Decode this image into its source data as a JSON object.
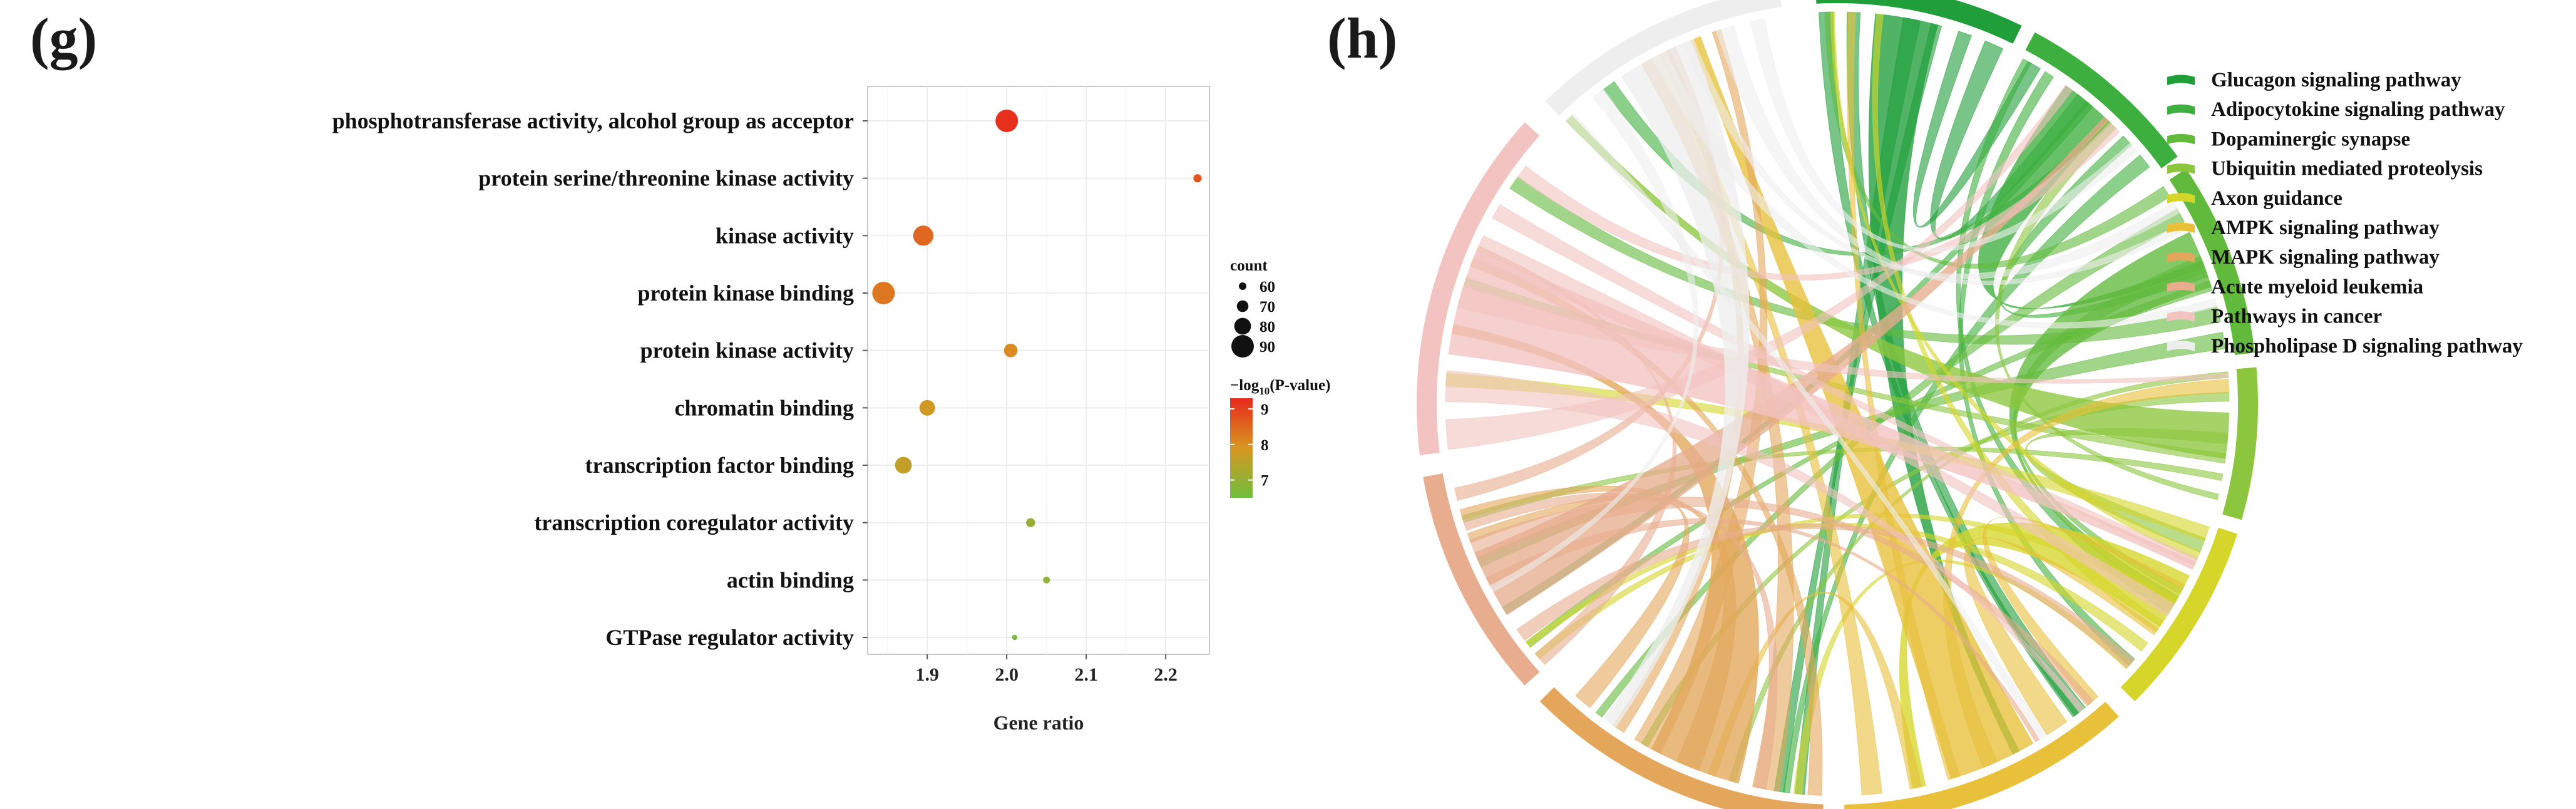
{
  "panels": {
    "left_label": "(g)",
    "right_label": "(h)"
  },
  "chart_data": [
    {
      "type": "scatter",
      "title": "",
      "xlabel": "Gene ratio",
      "ylabel": "",
      "xlim": [
        1.825,
        2.255
      ],
      "xticks": [
        "1.9",
        "2.0",
        "2.1",
        "2.2"
      ],
      "xtick_values": [
        1.9,
        2.0,
        2.1,
        2.2
      ],
      "grid": true,
      "categories": [
        "phosphotransferase activity, alcohol group as acceptor",
        "protein serine/threonine kinase activity",
        "kinase activity",
        "protein kinase binding",
        "protein kinase activity",
        "chromatin binding",
        "transcription factor binding",
        "transcription coregulator activity",
        "actin binding",
        "GTPase regulator activity"
      ],
      "gene_ratio": [
        2.0,
        2.24,
        1.895,
        1.845,
        2.005,
        1.9,
        1.87,
        2.03,
        2.05,
        2.01
      ],
      "count": [
        90,
        62,
        86,
        90,
        74,
        78,
        80,
        64,
        58,
        52
      ],
      "neg_log10_p": [
        9.2,
        8.7,
        8.5,
        8.3,
        8.05,
        7.8,
        7.6,
        7.1,
        6.9,
        6.6
      ],
      "size_legend": {
        "title": "count",
        "values": [
          "60",
          "70",
          "80",
          "90"
        ]
      },
      "color_legend": {
        "title_prefix": "−log",
        "title_sub": "10",
        "title_suffix": "(P-value)",
        "ticks": [
          "9",
          "8",
          "7"
        ],
        "tick_values": [
          9,
          8,
          7
        ],
        "range": [
          6.5,
          9.3
        ],
        "color_low": "#6fbe3f",
        "color_high": "#e8281c"
      }
    },
    {
      "type": "chord",
      "title": "",
      "legend": [
        "Glucagon signaling pathway",
        "Adipocytokine signaling pathway",
        "Dopaminergic synapse",
        "Ubiquitin mediated proteolysis",
        "Axon guidance",
        "AMPK signaling pathway",
        "MAPK signaling pathway",
        "Acute myeloid leukemia",
        "Pathways in cancer",
        "Phospholipase D signaling pathway"
      ],
      "colors": [
        "#1f9e3a",
        "#3daf3e",
        "#62ba3c",
        "#8cc63e",
        "#d6d62a",
        "#e8c03a",
        "#e3a65a",
        "#e7ad8e",
        "#f2c3c0",
        "#eeeeee"
      ]
    }
  ]
}
